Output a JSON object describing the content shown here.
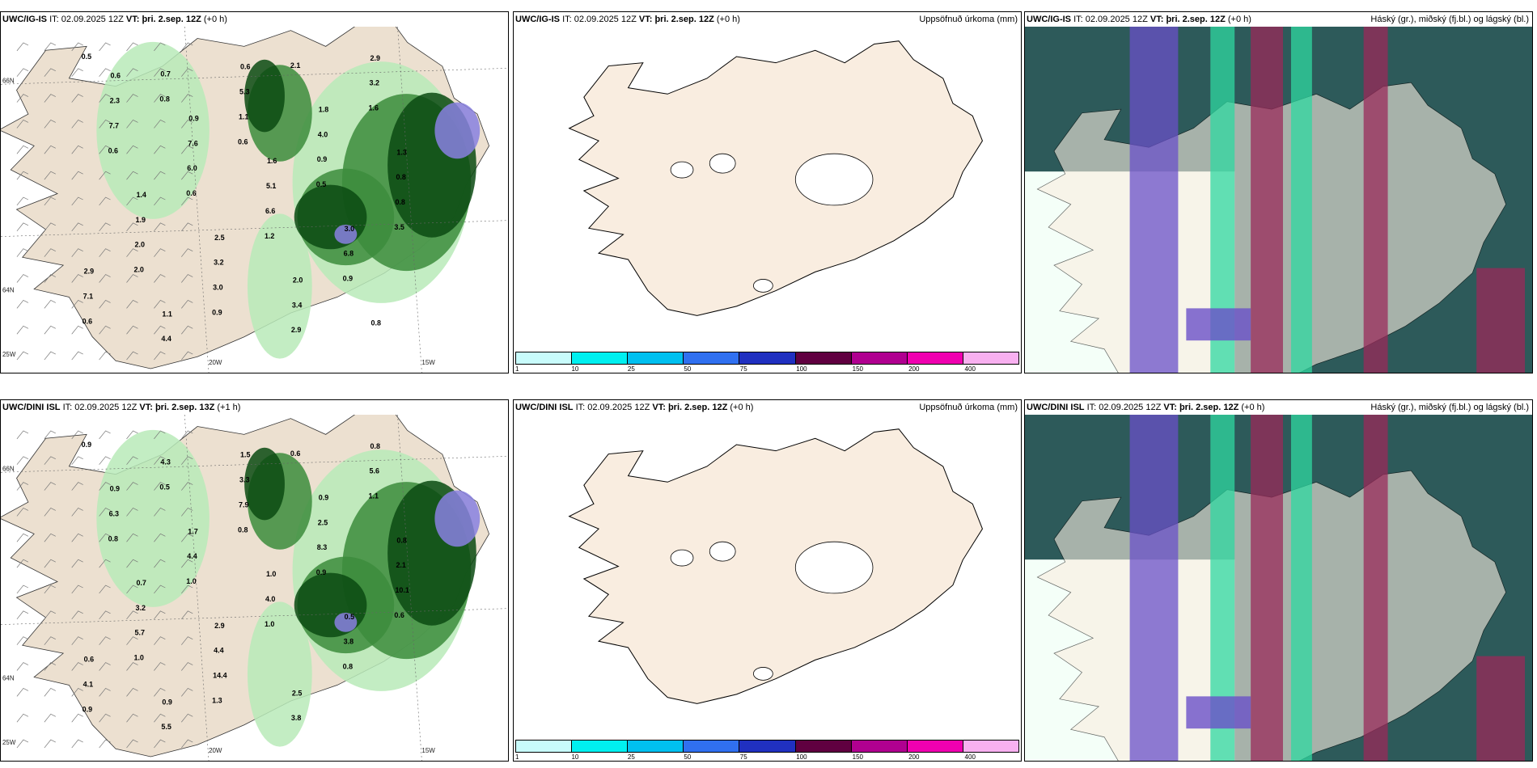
{
  "rows": [
    {
      "precip": {
        "model": "UWC/IG-IS",
        "it_label": "IT:",
        "it": "02.09.2025 12Z",
        "vt_label": "VT:",
        "vt": "þri. 2.sep. 12Z",
        "lead": "(+0 h)",
        "labels": [
          "0.5",
          "0.8",
          "0.6",
          "0.5",
          "3.5",
          "2.0",
          "0.9",
          "2.1",
          "1.6",
          "0.6",
          "0.6",
          "1.2",
          "0.9",
          "0.6",
          "0.7",
          "1.1",
          "0.9",
          "0.8",
          "2.0",
          "3.0",
          "2.9",
          "3.2",
          "7.7",
          "6.0",
          "6.6",
          "6.8",
          "7.1",
          "4.4",
          "5.3",
          "4.0",
          "0.8",
          "1.9",
          "3.2",
          "3.4",
          "2.9",
          "2.3",
          "7.6",
          "5.1",
          "3.0",
          "2.9",
          "1.1",
          "0.6",
          "1.8",
          "1.3",
          "1.4",
          "2.5",
          "2.0",
          "0.8",
          "0.6",
          "0.9",
          "1.6"
        ],
        "lon_labels": [
          "20W",
          "15W"
        ],
        "lat_labels": [
          "66N",
          "64N",
          "25W"
        ]
      },
      "accum": {
        "model": "UWC/IG-IS",
        "it_label": "IT:",
        "it": "02.09.2025 12Z",
        "vt_label": "VT:",
        "vt": "þri. 2.sep. 12Z",
        "lead": "(+0 h)",
        "title": "Uppsöfnuð úrkoma (mm)"
      },
      "cloud": {
        "model": "UWC/IG-IS",
        "it_label": "IT:",
        "it": "02.09.2025 12Z",
        "vt_label": "VT:",
        "vt": "þri. 2.sep. 12Z",
        "lead": "(+0 h)",
        "title": "Háský (gr.), miðský (fj.bl.) og lágský (bl.)"
      }
    },
    {
      "precip": {
        "model": "UWC/DINI ISL",
        "it_label": "IT:",
        "it": "02.09.2025 12Z",
        "vt_label": "VT:",
        "vt": "þri. 2.sep. 13Z",
        "lead": "(+1 h)",
        "labels": [
          "0.9",
          "0.5",
          "0.8",
          "0.9",
          "0.6",
          "1.0",
          "1.3",
          "0.6",
          "1.1",
          "0.8",
          "1.0",
          "1.0",
          "0.8",
          "0.9",
          "4.3",
          "7.9",
          "8.3",
          "10.1",
          "5.7",
          "14.4",
          "3.8",
          "5.6",
          "6.3",
          "4.4",
          "4.0",
          "3.8",
          "4.1",
          "5.5",
          "3.3",
          "2.5",
          "2.1",
          "3.2",
          "4.4",
          "2.5",
          "0.8",
          "0.9",
          "1.7",
          "1.0",
          "0.5",
          "0.6",
          "0.9",
          "1.5",
          "0.9",
          "0.8",
          "0.7",
          "2.9"
        ],
        "lon_labels": [
          "20W",
          "15W"
        ],
        "lat_labels": [
          "66N",
          "64N",
          "25W"
        ]
      },
      "accum": {
        "model": "UWC/DINI ISL",
        "it_label": "IT:",
        "it": "02.09.2025 12Z",
        "vt_label": "VT:",
        "vt": "þri. 2.sep. 12Z",
        "lead": "(+0 h)",
        "title": "Uppsöfnuð úrkoma (mm)"
      },
      "cloud": {
        "model": "UWC/DINI ISL",
        "it_label": "IT:",
        "it": "02.09.2025 12Z",
        "vt_label": "VT:",
        "vt": "þri. 2.sep. 12Z",
        "lead": "(+0 h)",
        "title": "Háský (gr.), miðský (fj.bl.) og lágský (bl.)"
      }
    }
  ],
  "legend": {
    "ticks": [
      "1",
      "10",
      "25",
      "50",
      "75",
      "100",
      "150",
      "200",
      "400"
    ],
    "colors": [
      "#c8fbfb",
      "#00f0f0",
      "#00c0f0",
      "#3070f0",
      "#2030c0",
      "#600040",
      "#b00090",
      "#f000b0",
      "#f8b0f0"
    ]
  },
  "colors": {
    "land": "#f9ede0",
    "precip_land": "#ece0d0",
    "green_dark": "#0a4a12",
    "green_mid": "#3c8c3c",
    "green_light": "#b8eab8",
    "blue": "#8880e0",
    "cloud_dark": "#2d5a5a",
    "cloud_teal": "#2fd8a0",
    "cloud_purple": "#6a50c8",
    "cloud_red": "#9a2a5a"
  }
}
